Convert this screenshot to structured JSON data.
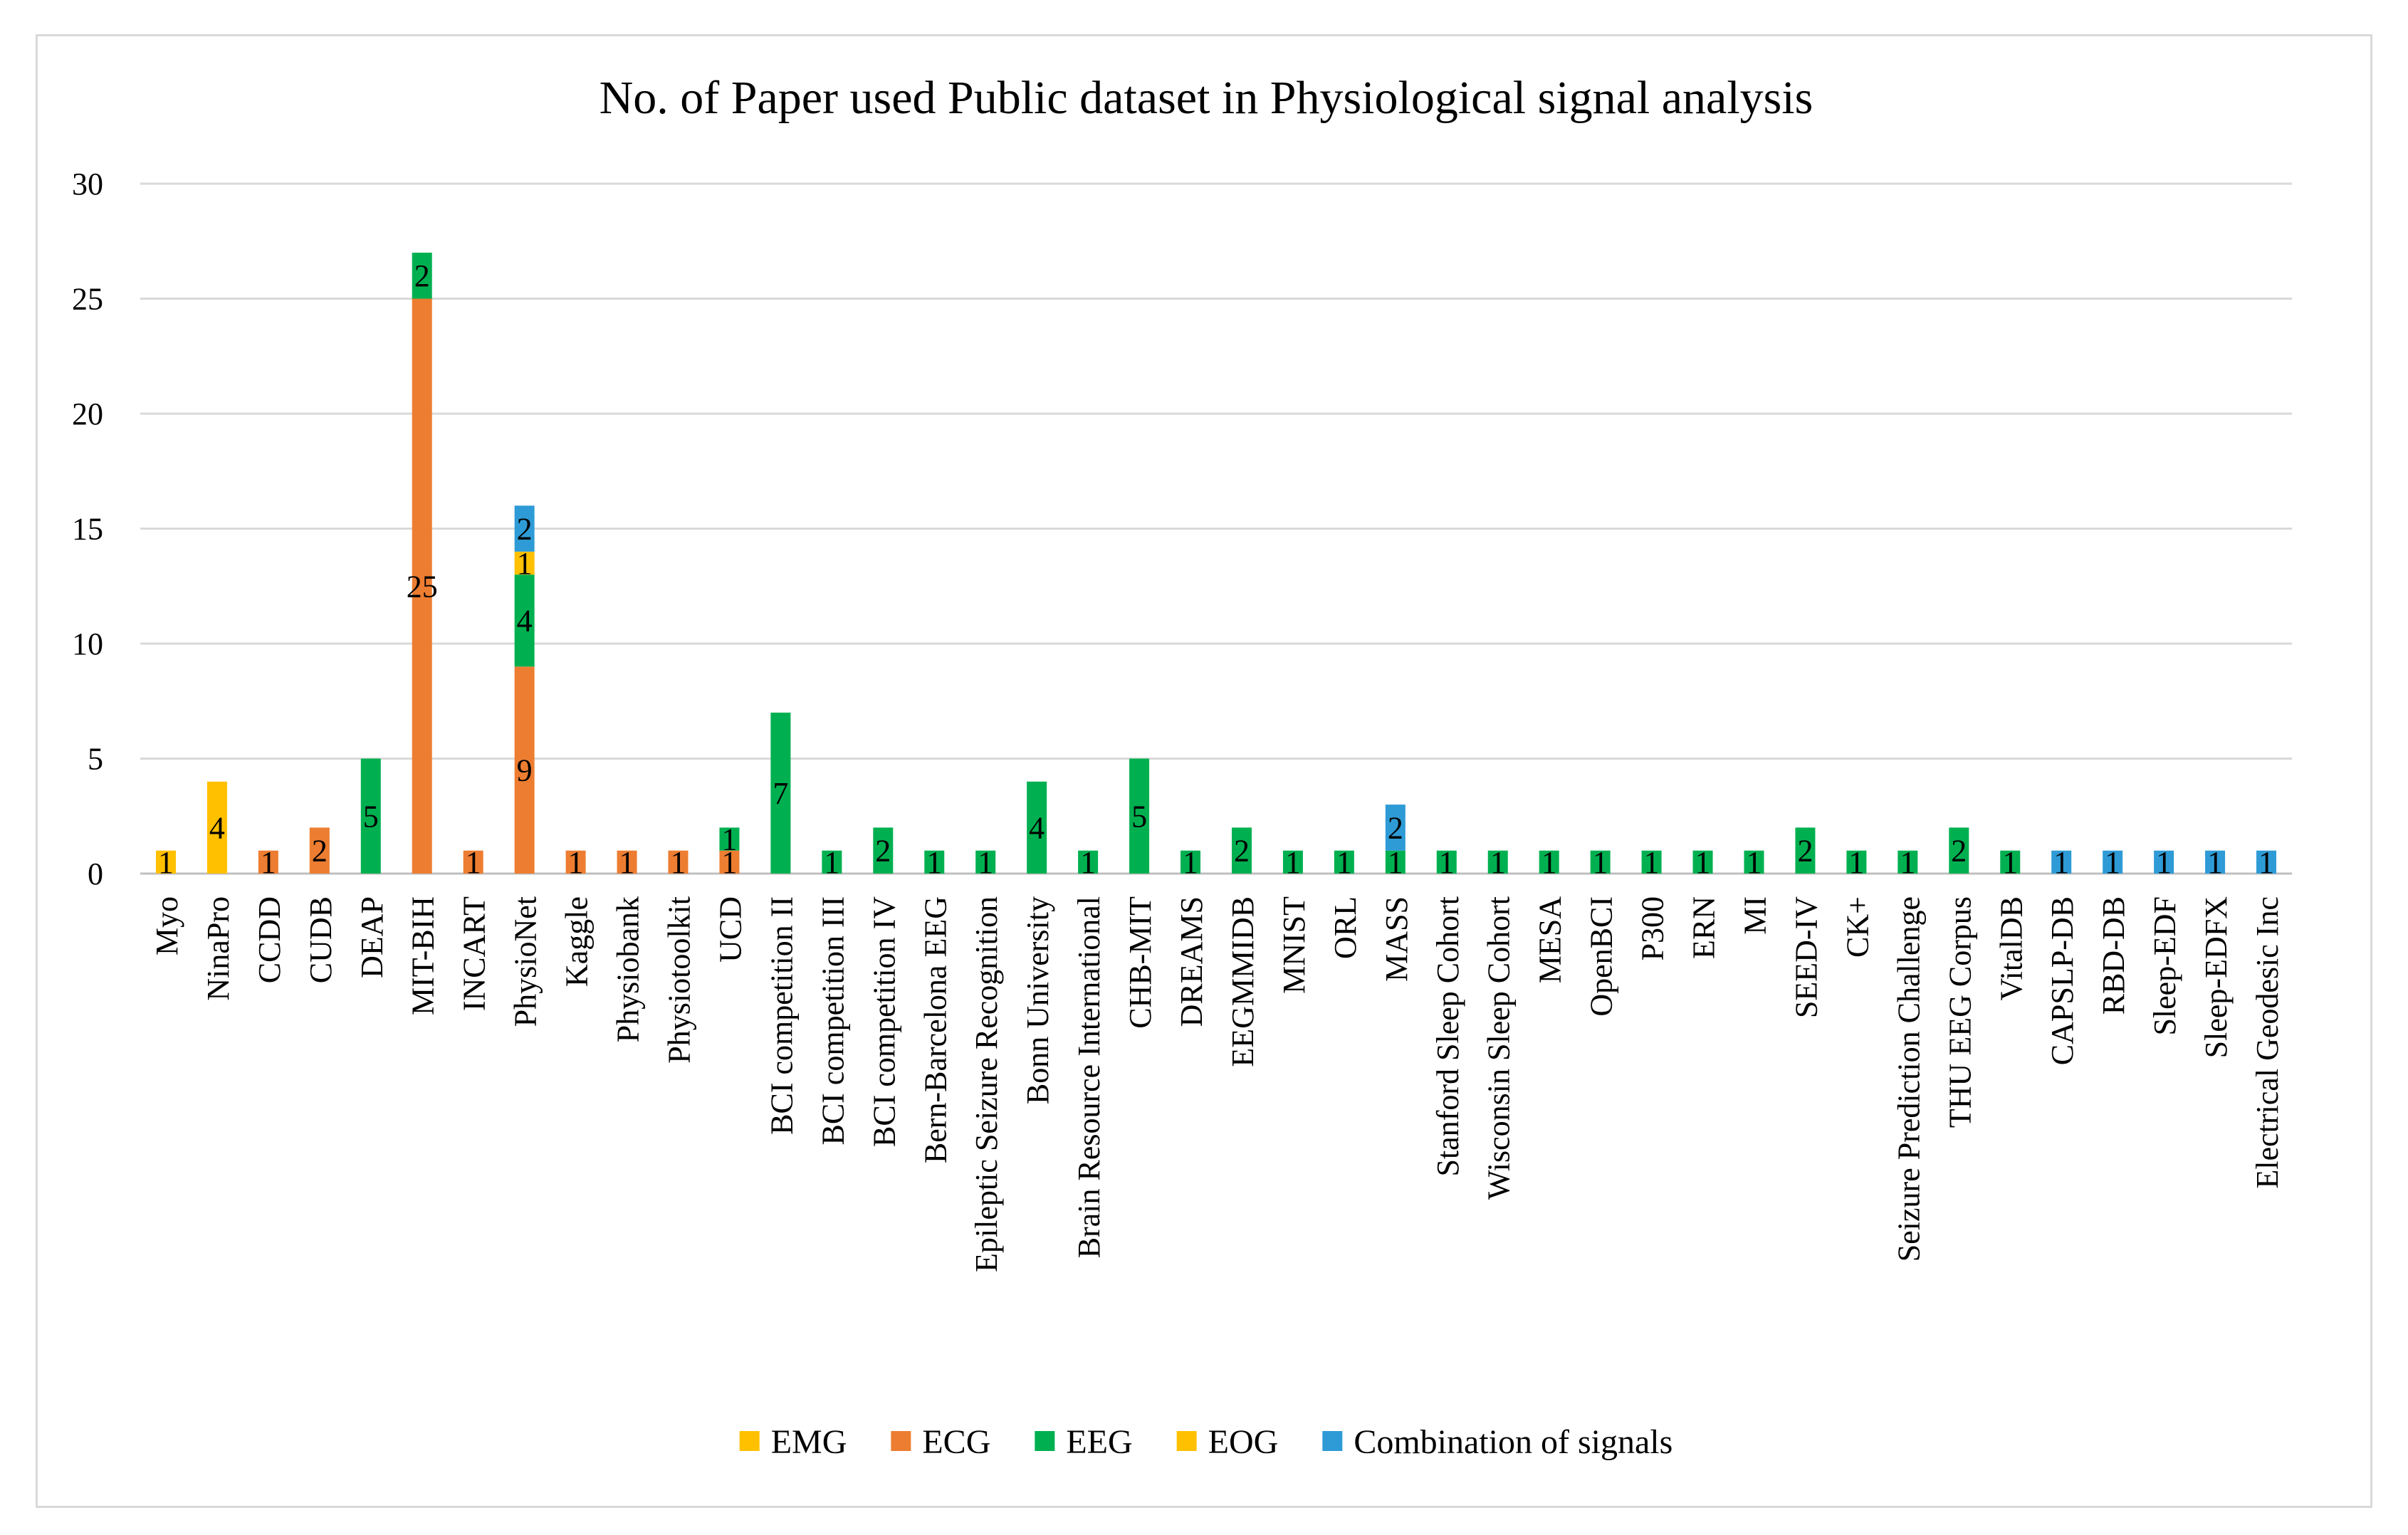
{
  "chart_data": {
    "type": "bar",
    "stacked": true,
    "title": "No. of Paper used Public dataset in Physiological signal analysis",
    "xlabel": "",
    "ylabel": "",
    "ylim": [
      0,
      30
    ],
    "yticks": [
      0,
      5,
      10,
      15,
      20,
      25,
      30
    ],
    "grid": true,
    "legend_position": "bottom",
    "categories": [
      "Myo",
      "NinaPro",
      "CCDD",
      "CUDB",
      "DEAP",
      "MIT-BIH",
      "INCART",
      "PhysioNet",
      "Kaggle",
      "Physiobank",
      "Physiotoolkit",
      "UCD",
      "BCI competition II",
      "BCI competition III",
      "BCI competition IV",
      "Bern-Barcelona EEG",
      "Epileptic Seizure Recognition",
      "Bonn University",
      "Brain Resource International",
      "CHB-MIT",
      "DREAMS",
      "EEGMMIDB",
      "MNIST",
      "ORL",
      "MASS",
      "Stanford Sleep Cohort",
      "Wisconsin Sleep Cohort",
      "MESA",
      "OpenBCI",
      "P300",
      "ERN",
      "MI",
      "SEED-IV",
      "CK+",
      "Seizure Prediction Challenge",
      "THU EEG Corpus",
      "VitalDB",
      "CAPSLP-DB",
      "RBD-DB",
      "Sleep-EDF",
      "Sleep-EDFX",
      "Electrical Geodesic Inc"
    ],
    "series": [
      {
        "name": "EMG",
        "color": "#ffc000",
        "values": [
          1,
          4,
          0,
          0,
          0,
          0,
          0,
          0,
          0,
          0,
          0,
          0,
          0,
          0,
          0,
          0,
          0,
          0,
          0,
          0,
          0,
          0,
          0,
          0,
          0,
          0,
          0,
          0,
          0,
          0,
          0,
          0,
          0,
          0,
          0,
          0,
          0,
          0,
          0,
          0,
          0,
          0
        ]
      },
      {
        "name": "ECG",
        "color": "#ed7d31",
        "values": [
          0,
          0,
          1,
          2,
          0,
          25,
          1,
          9,
          1,
          1,
          1,
          1,
          0,
          0,
          0,
          0,
          0,
          0,
          0,
          0,
          0,
          0,
          0,
          0,
          0,
          0,
          0,
          0,
          0,
          0,
          0,
          0,
          0,
          0,
          0,
          0,
          0,
          0,
          0,
          0,
          0,
          0
        ]
      },
      {
        "name": "EEG",
        "color": "#00b050",
        "values": [
          0,
          0,
          0,
          0,
          5,
          2,
          0,
          4,
          0,
          0,
          0,
          1,
          7,
          1,
          2,
          1,
          1,
          4,
          1,
          5,
          1,
          2,
          1,
          1,
          1,
          1,
          1,
          1,
          1,
          1,
          1,
          1,
          2,
          1,
          1,
          2,
          1,
          0,
          0,
          0,
          0,
          0
        ]
      },
      {
        "name": "EOG",
        "color": "#ffc000",
        "values": [
          0,
          0,
          0,
          0,
          0,
          0,
          0,
          1,
          0,
          0,
          0,
          0,
          0,
          0,
          0,
          0,
          0,
          0,
          0,
          0,
          0,
          0,
          0,
          0,
          0,
          0,
          0,
          0,
          0,
          0,
          0,
          0,
          0,
          0,
          0,
          0,
          0,
          0,
          0,
          0,
          0,
          0
        ]
      },
      {
        "name": "Combination of signals",
        "color": "#2e9bd6",
        "values": [
          0,
          0,
          0,
          0,
          0,
          0,
          0,
          2,
          0,
          0,
          0,
          0,
          0,
          0,
          0,
          0,
          0,
          0,
          0,
          0,
          0,
          0,
          0,
          0,
          2,
          0,
          0,
          0,
          0,
          0,
          0,
          0,
          0,
          0,
          0,
          0,
          0,
          1,
          1,
          1,
          1,
          1
        ]
      }
    ]
  }
}
